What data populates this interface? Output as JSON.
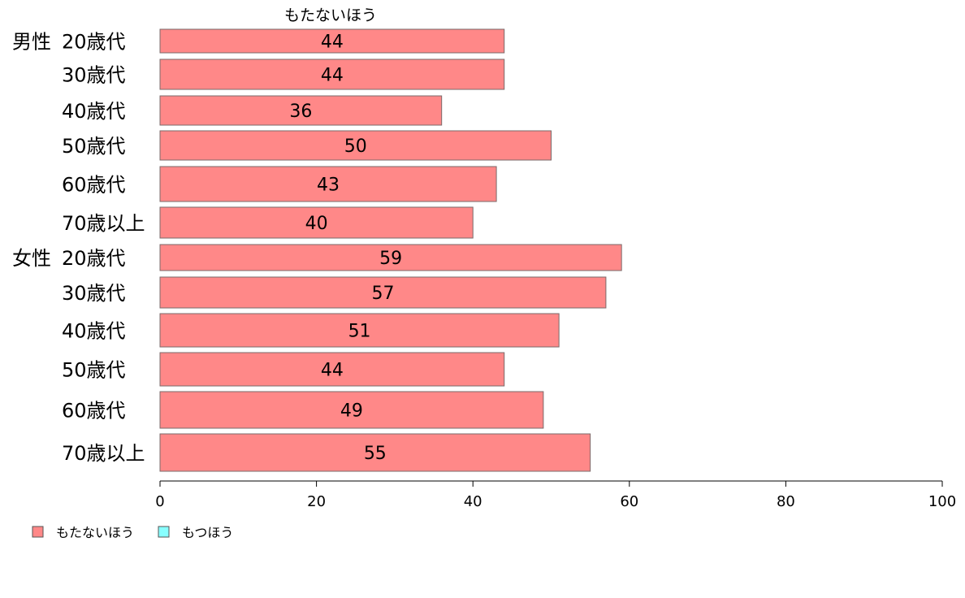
{
  "chart_data": {
    "type": "bar",
    "orientation": "horizontal",
    "series_title": "もたないほう",
    "categories": [
      {
        "group": "男性",
        "label": "20歳代",
        "value": 44
      },
      {
        "group": "",
        "label": "30歳代",
        "value": 44
      },
      {
        "group": "",
        "label": "40歳代",
        "value": 36
      },
      {
        "group": "",
        "label": "50歳代",
        "value": 50
      },
      {
        "group": "",
        "label": "60歳代",
        "value": 43
      },
      {
        "group": "",
        "label": "70歳以上",
        "value": 40
      },
      {
        "group": "女性",
        "label": "20歳代",
        "value": 59
      },
      {
        "group": "",
        "label": "30歳代",
        "value": 57
      },
      {
        "group": "",
        "label": "40歳代",
        "value": 51
      },
      {
        "group": "",
        "label": "50歳代",
        "value": 44
      },
      {
        "group": "",
        "label": "60歳代",
        "value": 49
      },
      {
        "group": "",
        "label": "70歳以上",
        "value": 55
      }
    ],
    "series": [
      {
        "name": "もたないほう",
        "color": "#ff8888"
      },
      {
        "name": "もつほう",
        "color": "#88ffff"
      }
    ],
    "xlim": [
      0,
      100
    ],
    "xticks": [
      0,
      20,
      40,
      60,
      80,
      100
    ],
    "grid": false,
    "legend_position": "bottom-left"
  }
}
